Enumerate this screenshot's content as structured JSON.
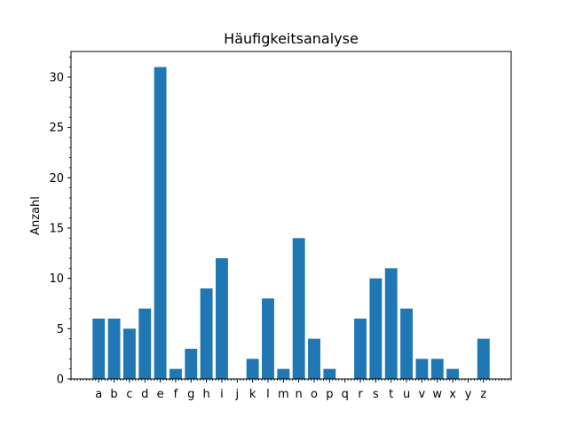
{
  "chart_data": {
    "type": "bar",
    "title": "Häufigkeitsanalyse",
    "xlabel": "",
    "ylabel": "Anzahl",
    "categories": [
      "a",
      "b",
      "c",
      "d",
      "e",
      "f",
      "g",
      "h",
      "i",
      "j",
      "k",
      "l",
      "m",
      "n",
      "o",
      "p",
      "q",
      "r",
      "s",
      "t",
      "u",
      "v",
      "w",
      "x",
      "y",
      "z"
    ],
    "values": [
      6,
      6,
      5,
      7,
      31,
      1,
      3,
      9,
      12,
      0,
      2,
      8,
      1,
      14,
      4,
      1,
      0,
      6,
      10,
      11,
      7,
      2,
      2,
      1,
      0,
      4
    ],
    "ylim": [
      0,
      32.55
    ],
    "yticks": [
      0,
      5,
      10,
      15,
      20,
      25,
      30
    ],
    "grid": false,
    "colors": {
      "bar": "#1f77b4"
    }
  }
}
